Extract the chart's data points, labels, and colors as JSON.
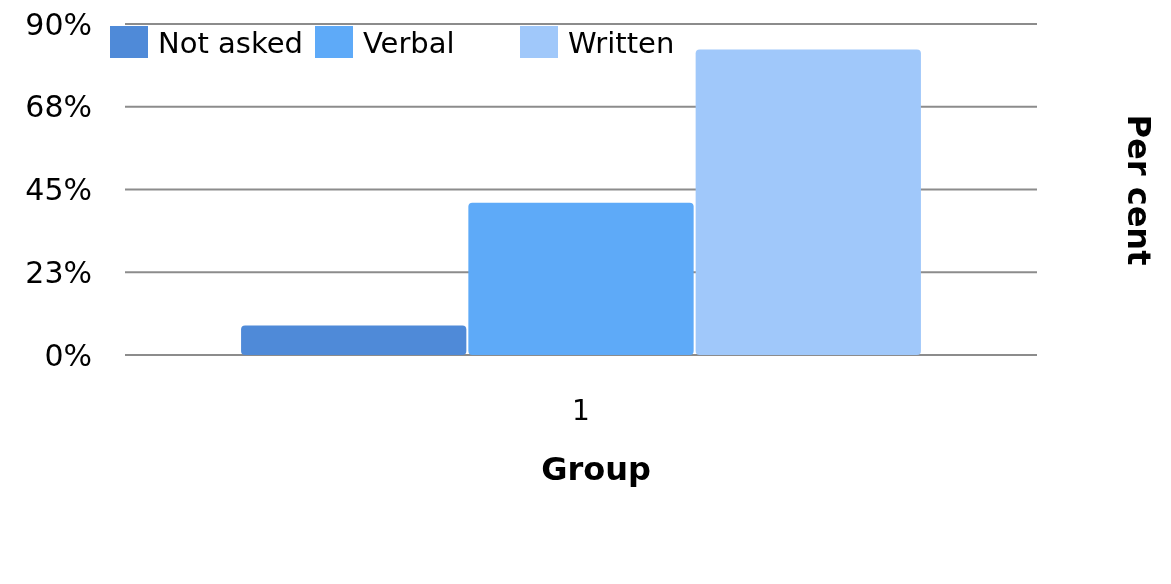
{
  "chart_data": {
    "type": "bar",
    "categories": [
      "1"
    ],
    "series": [
      {
        "name": "Not asked",
        "color": "#4f8ad8",
        "values": [
          8
        ]
      },
      {
        "name": "Verbal",
        "color": "#5eaaf8",
        "values": [
          41.4
        ]
      },
      {
        "name": "Written",
        "color": "#a0c8fa",
        "values": [
          83.1
        ]
      }
    ],
    "xlabel": "Group",
    "ylabel": "Per cent",
    "ylim": [
      0,
      90
    ],
    "yticks": [
      {
        "value": 0,
        "label": "0%"
      },
      {
        "value": 22.5,
        "label": "23%"
      },
      {
        "value": 45,
        "label": "45%"
      },
      {
        "value": 67.5,
        "label": "68%"
      },
      {
        "value": 90,
        "label": "90%"
      }
    ],
    "grid": "y",
    "legend": "top left"
  }
}
